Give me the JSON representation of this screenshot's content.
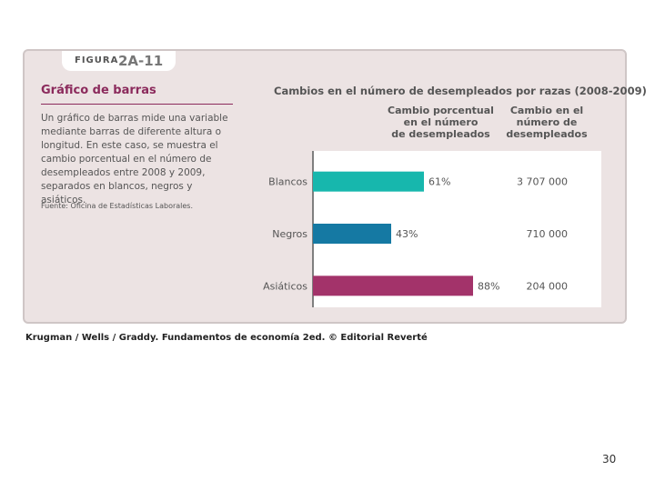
{
  "figure": {
    "word": "FIGURA",
    "number": "2A-11"
  },
  "left": {
    "title": "Gráfico de barras",
    "desc": "Un gráfico de barras mide una variable mediante barras de diferente altura o longitud. En este caso, se muestra el cambio porcentual en el número de desempleados entre 2008 y 2009, separados en blancos, negros y asiáticos.",
    "source": "Fuente: Oficina de Estadísticas Laborales."
  },
  "columns": {
    "col1": [
      "Cambio porcentual",
      "en el número",
      "de desempleados"
    ],
    "col2": [
      "Cambio en el",
      "número de",
      "desempleados"
    ]
  },
  "chart_data": {
    "type": "bar",
    "orientation": "horizontal",
    "title": "Cambios en el número de desempleados por razas (2008-2009)",
    "categories": [
      "Blancos",
      "Negros",
      "Asiáticos"
    ],
    "values": [
      61,
      43,
      88
    ],
    "value_labels": [
      "61%",
      "43%",
      "88%"
    ],
    "counts": [
      "3 707 000",
      "710 000",
      "204 000"
    ],
    "colors": [
      "#17b7ad",
      "#1579a3",
      "#a3336a"
    ],
    "xlim": [
      0,
      100
    ],
    "grid": false
  },
  "footer": "Krugman / Wells / Graddy. Fundamentos de economía 2ed. © Editorial Reverté",
  "page_number": "30"
}
